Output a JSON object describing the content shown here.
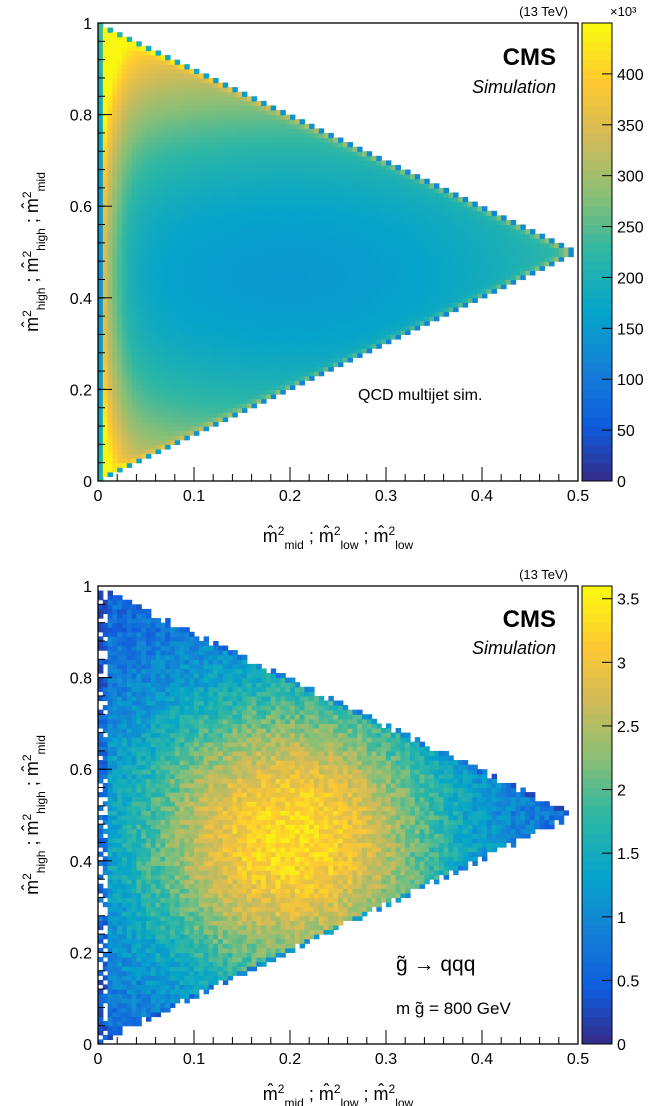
{
  "chart_data": [
    {
      "type": "heatmap",
      "energy_label": "(13 TeV)",
      "cms_label": "CMS",
      "sim_label": "Simulation",
      "annotation": "QCD multijet sim.",
      "xlim": [
        0,
        0.5
      ],
      "ylim": [
        0,
        1
      ],
      "x_ticks": [
        "0",
        "0.1",
        "0.2",
        "0.3",
        "0.4",
        "0.5"
      ],
      "y_ticks": [
        "0",
        "0.2",
        "0.4",
        "0.6",
        "0.8",
        "1"
      ],
      "colorbar_exponent": "×10³",
      "colorbar_range": [
        0,
        450
      ],
      "colorbar_ticks": [
        "0",
        "50",
        "100",
        "150",
        "200",
        "250",
        "300",
        "350",
        "400"
      ],
      "distribution": "bathtub: highest near left edge x≈0.01 (~440×10³), minimum ~150×10³ near (0.2,0.45), bright rim along the diagonal edges"
    },
    {
      "type": "heatmap",
      "energy_label": "(13 TeV)",
      "cms_label": "CMS",
      "sim_label": "Simulation",
      "annotation_line1": "g̃ → qqq",
      "annotation_line2": "m g̃ = 800 GeV",
      "xlim": [
        0,
        0.5
      ],
      "ylim": [
        0,
        1
      ],
      "x_ticks": [
        "0",
        "0.1",
        "0.2",
        "0.3",
        "0.4",
        "0.5"
      ],
      "y_ticks": [
        "0",
        "0.2",
        "0.4",
        "0.6",
        "0.8",
        "1"
      ],
      "colorbar_range": [
        0,
        3.6
      ],
      "colorbar_ticks": [
        "0",
        "0.5",
        "1",
        "1.5",
        "2",
        "2.5",
        "3",
        "3.5"
      ],
      "distribution": "broad peak ~3 near (0.2,0.45), falling to ~0.5 at the triangle corners, noisy"
    }
  ]
}
